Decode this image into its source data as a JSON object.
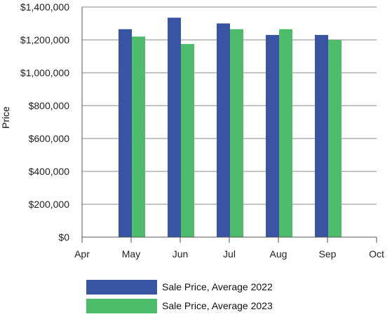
{
  "chart_data": {
    "type": "bar",
    "title": "",
    "ylabel": "Price",
    "xlabel": "",
    "x_ticks": [
      "Apr",
      "May",
      "Jun",
      "Jul",
      "Aug",
      "Sep",
      "Oct"
    ],
    "categories": [
      "May",
      "Jun",
      "Jul",
      "Aug",
      "Sep"
    ],
    "series": [
      {
        "name": "Sale Price, Average 2022",
        "color": "#3a54a4",
        "values": [
          1265000,
          1335000,
          1300000,
          1230000,
          1230000
        ]
      },
      {
        "name": "Sale Price, Average 2023",
        "color": "#4dbd6b",
        "values": [
          1220000,
          1175000,
          1265000,
          1265000,
          1200000
        ]
      }
    ],
    "ylim": [
      0,
      1400000
    ],
    "y_ticks": [
      "$0",
      "$200,000",
      "$400,000",
      "$600,000",
      "$800,000",
      "$1,000,000",
      "$1,200,000",
      "$1,400,000"
    ],
    "grid": true,
    "legend": "bottom-center"
  }
}
